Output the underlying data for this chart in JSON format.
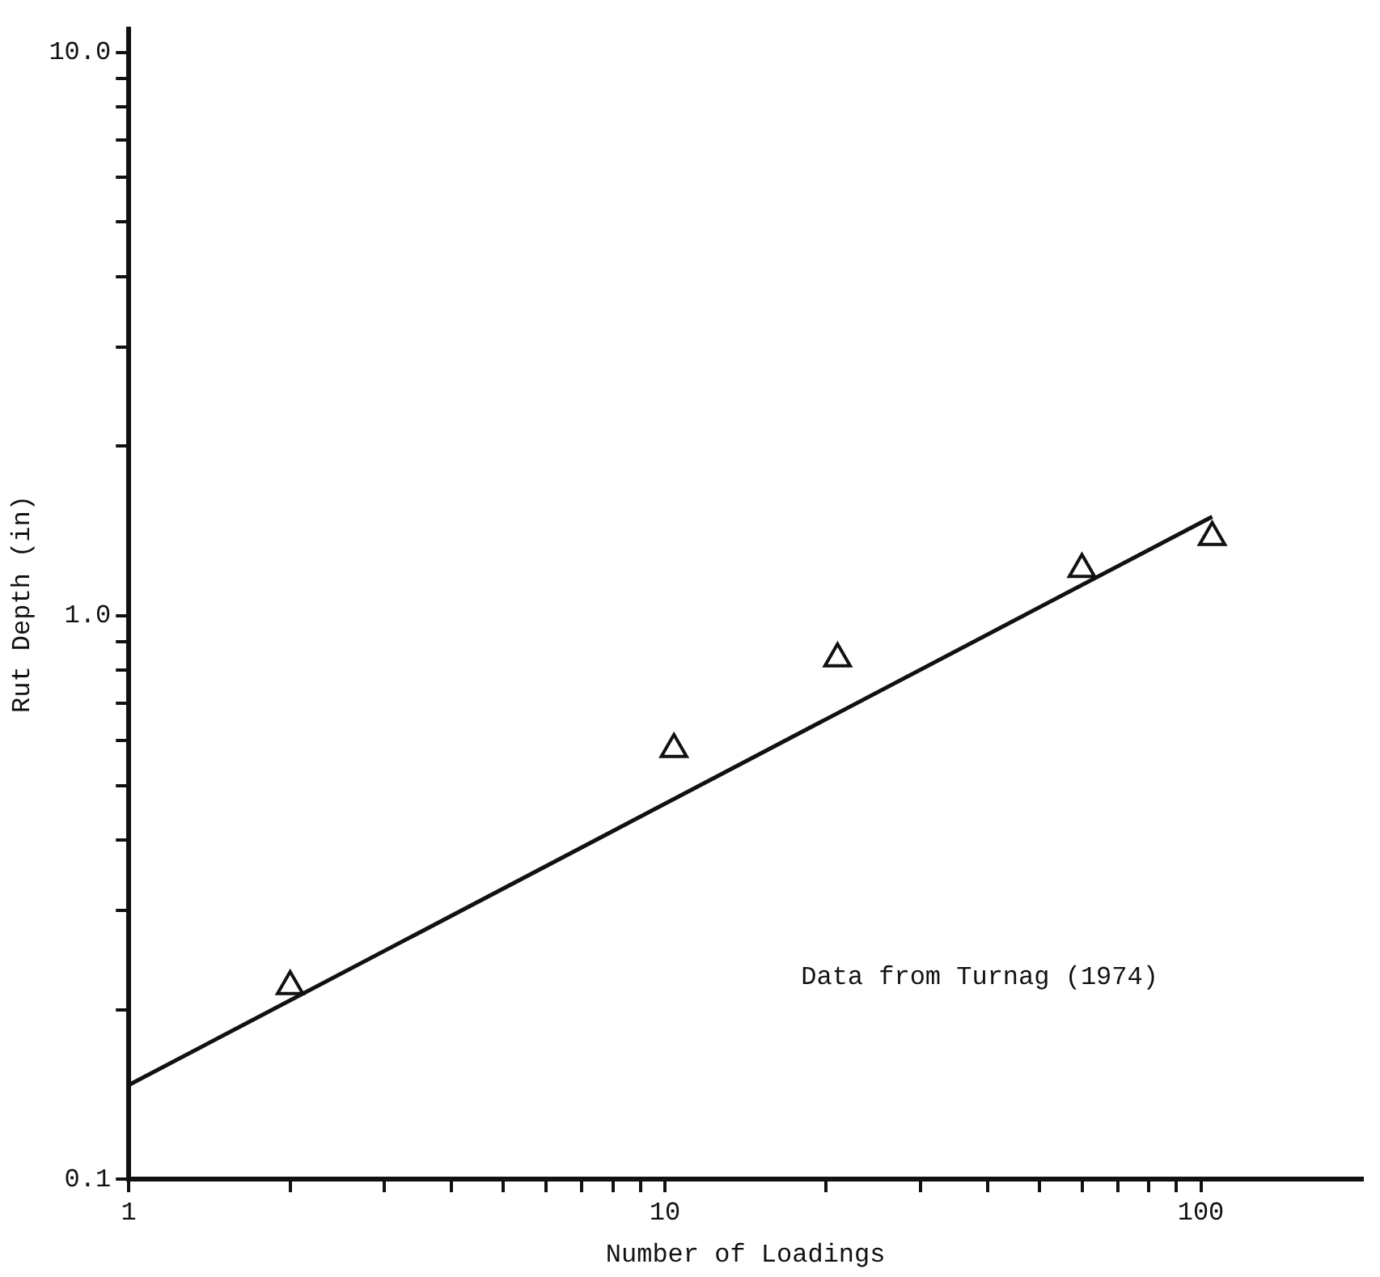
{
  "chart_data": {
    "type": "scatter",
    "xlabel": "Number of Loadings",
    "ylabel": "Rut Depth (in)",
    "log": "xy",
    "xlim": [
      1,
      200
    ],
    "ylim": [
      0.1,
      11
    ],
    "xticks": [
      1,
      {
        "value": 2,
        "label": null
      },
      {
        "value": 3,
        "label": null
      },
      {
        "value": 4,
        "label": null
      },
      {
        "value": 5,
        "label": null
      },
      {
        "value": 6,
        "label": null
      },
      {
        "value": 7,
        "label": null
      },
      {
        "value": 8,
        "label": null
      },
      {
        "value": 9,
        "label": null
      },
      10,
      {
        "value": 20,
        "label": null
      },
      {
        "value": 30,
        "label": null
      },
      {
        "value": 40,
        "label": null
      },
      {
        "value": 50,
        "label": null
      },
      {
        "value": 60,
        "label": null
      },
      {
        "value": 70,
        "label": null
      },
      {
        "value": 80,
        "label": null
      },
      {
        "value": 90,
        "label": null
      },
      100
    ],
    "yticks": [
      {
        "value": 0.1,
        "label": "0.1"
      },
      {
        "value": 0.2,
        "label": null
      },
      {
        "value": 0.3,
        "label": null
      },
      {
        "value": 0.4,
        "label": null
      },
      {
        "value": 0.5,
        "label": null
      },
      {
        "value": 0.6,
        "label": null
      },
      {
        "value": 0.7,
        "label": null
      },
      {
        "value": 0.8,
        "label": null
      },
      {
        "value": 0.9,
        "label": null
      },
      {
        "value": 1,
        "label": "1.0"
      },
      {
        "value": 2,
        "label": null
      },
      {
        "value": 3,
        "label": null
      },
      {
        "value": 4,
        "label": null
      },
      {
        "value": 5,
        "label": null
      },
      {
        "value": 6,
        "label": null
      },
      {
        "value": 7,
        "label": null
      },
      {
        "value": 8,
        "label": null
      },
      {
        "value": 9,
        "label": null
      },
      {
        "value": 10,
        "label": "10.0"
      }
    ],
    "grid": false,
    "legend": false,
    "series": [
      {
        "marker": "triangle",
        "color": "#111111",
        "x": [
          2,
          10.4,
          21,
          60,
          105
        ],
        "values": [
          0.22,
          0.58,
          0.84,
          1.21,
          1.38
        ]
      },
      {
        "type": "line",
        "marker": "none",
        "color": "#111111",
        "x": [
          1,
          105
        ],
        "values": [
          0.147,
          1.5
        ]
      }
    ],
    "annotations": [
      "Data from Turnag (1974)"
    ]
  }
}
